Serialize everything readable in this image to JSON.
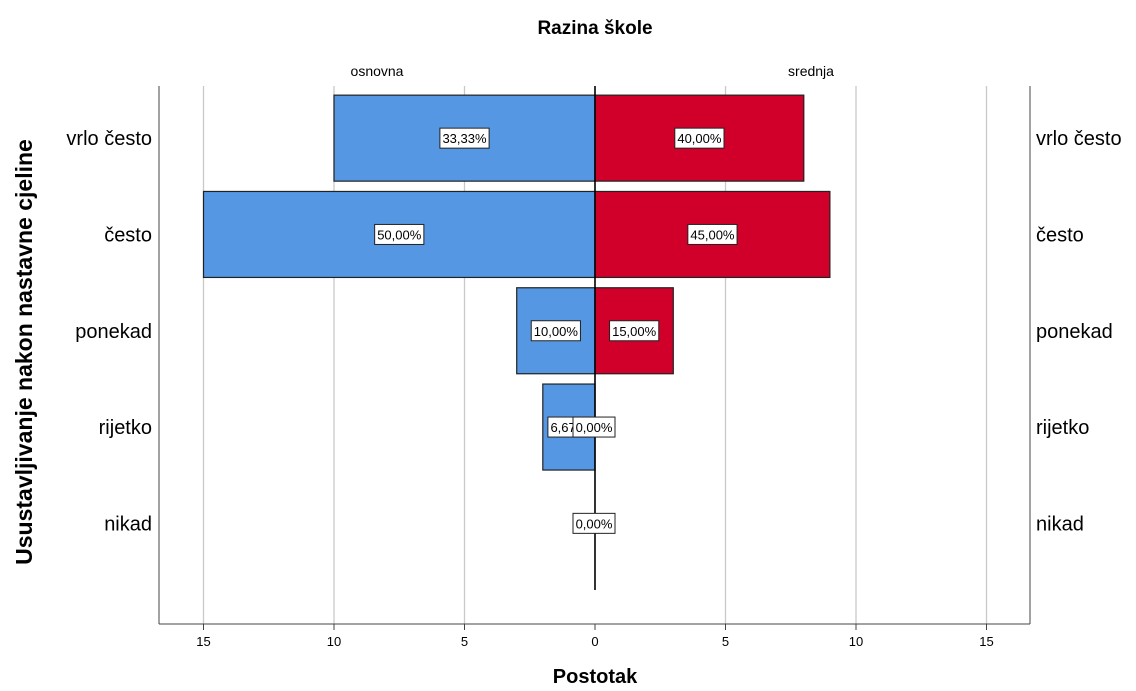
{
  "chart_data": {
    "type": "bar",
    "orientation": "horizontal-population-pyramid",
    "title": "Razina škole",
    "xlabel": "Postotak",
    "ylabel": "Usustavljivanje nakon nastavne cjeline",
    "categories": [
      "vrlo često",
      "često",
      "ponekad",
      "rijetko",
      "nikad"
    ],
    "xlim": [
      0,
      16.7
    ],
    "xticks": [
      0,
      5,
      10,
      15
    ],
    "xtick_labels": [
      "0",
      "5",
      "10",
      "15"
    ],
    "grid": true,
    "series": [
      {
        "name": "osnovna",
        "side": "left",
        "color": "#5597e3",
        "values": [
          10,
          15,
          3,
          2,
          0
        ],
        "labels": [
          "33,33%",
          "50,00%",
          "10,00%",
          "6,67%",
          ""
        ]
      },
      {
        "name": "srednja",
        "side": "right",
        "color": "#d0002b",
        "values": [
          8,
          9,
          3,
          0,
          0
        ],
        "labels": [
          "40,00%",
          "45,00%",
          "15,00%",
          "0,00%",
          "0,00%"
        ]
      }
    ]
  }
}
